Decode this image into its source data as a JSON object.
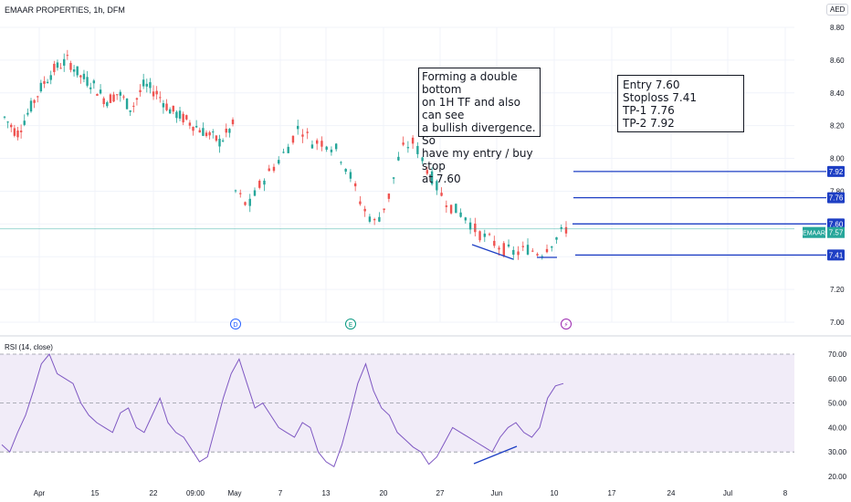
{
  "header": {
    "symbol_title": "EMAAR PROPERTIES, 1h, DFM",
    "currency": "AED"
  },
  "notes": {
    "setup": "Forming a double bottom\non 1H TF and also can see\na bullish divergence. So\nhave my entry / buy stop\nat 7.60",
    "levels": "Entry 7.60\nStoploss 7.41\nTP-1 7.76\nTP-2 7.92"
  },
  "rsi": {
    "label": "RSI (14, close)"
  },
  "event_icons": [
    "D",
    "E",
    "⚡"
  ],
  "colors": {
    "up": "#26a69a",
    "down": "#ef5350",
    "level_line": "#1e3fc4",
    "rsi_line": "#7e57c2",
    "rsi_band": "#ede7f6",
    "price_tag": "#26a69a"
  },
  "chart_data": [
    {
      "type": "candlestick",
      "title": "EMAAR PROPERTIES, 1h, DFM",
      "y_ticks": [
        "8.80",
        "8.60",
        "8.40",
        "8.20",
        "8.00",
        "7.80",
        "7.60",
        "7.40",
        "7.20",
        "7.00"
      ],
      "ylim": [
        7.0,
        8.8
      ],
      "x_ticks": [
        "Apr",
        "15",
        "22",
        "09:00",
        "May",
        "7",
        "13",
        "20",
        "27",
        "Jun",
        "10",
        "17",
        "24",
        "Jul",
        "8"
      ],
      "series": [
        {
          "name": "EMAAR",
          "approx_close": [
            8.25,
            8.15,
            8.3,
            8.45,
            8.55,
            8.6,
            8.5,
            8.45,
            8.35,
            8.4,
            8.3,
            8.45,
            8.4,
            8.3,
            8.25,
            8.2,
            8.15,
            8.1,
            8.2,
            7.8,
            7.7,
            7.85,
            7.95,
            8.05,
            8.2,
            8.1,
            8.1,
            8.05,
            7.9,
            7.7,
            7.6,
            7.75,
            8.05,
            8.1,
            7.95,
            7.8,
            7.7,
            7.65,
            7.55,
            7.5,
            7.45,
            7.42,
            7.45,
            7.42,
            7.5,
            7.57
          ]
        }
      ],
      "price_levels": [
        {
          "label": "7.92",
          "value": 7.92
        },
        {
          "label": "7.76",
          "value": 7.76
        },
        {
          "label": "7.60",
          "value": 7.6
        },
        {
          "label": "7.41",
          "value": 7.41
        }
      ],
      "last_price": {
        "label": "EMAAR",
        "value": "7.57"
      },
      "annotations": [
        "Forming a double bottom on 1H TF and also can see a bullish divergence. So have my entry / buy stop at 7.60",
        "Entry 7.60 Stoploss 7.41 TP-1 7.76 TP-2 7.92"
      ]
    },
    {
      "type": "line",
      "title": "RSI (14, close)",
      "y_ticks": [
        "70.00",
        "60.00",
        "50.00",
        "40.00",
        "30.00",
        "20.00"
      ],
      "ylim": [
        20,
        70
      ],
      "bands": [
        30,
        50,
        70
      ],
      "series": [
        {
          "name": "RSI",
          "values": [
            33,
            30,
            38,
            45,
            55,
            66,
            70,
            62,
            60,
            58,
            50,
            45,
            42,
            40,
            38,
            46,
            48,
            40,
            38,
            45,
            52,
            42,
            38,
            36,
            31,
            26,
            28,
            40,
            52,
            62,
            68,
            58,
            48,
            50,
            45,
            40,
            38,
            36,
            42,
            40,
            30,
            26,
            24,
            33,
            45,
            58,
            66,
            55,
            48,
            45,
            38,
            35,
            32,
            30,
            25,
            28,
            34,
            40,
            38,
            36,
            34,
            32,
            30,
            36,
            40,
            42,
            38,
            36,
            40,
            52,
            57,
            58
          ]
        }
      ]
    }
  ]
}
